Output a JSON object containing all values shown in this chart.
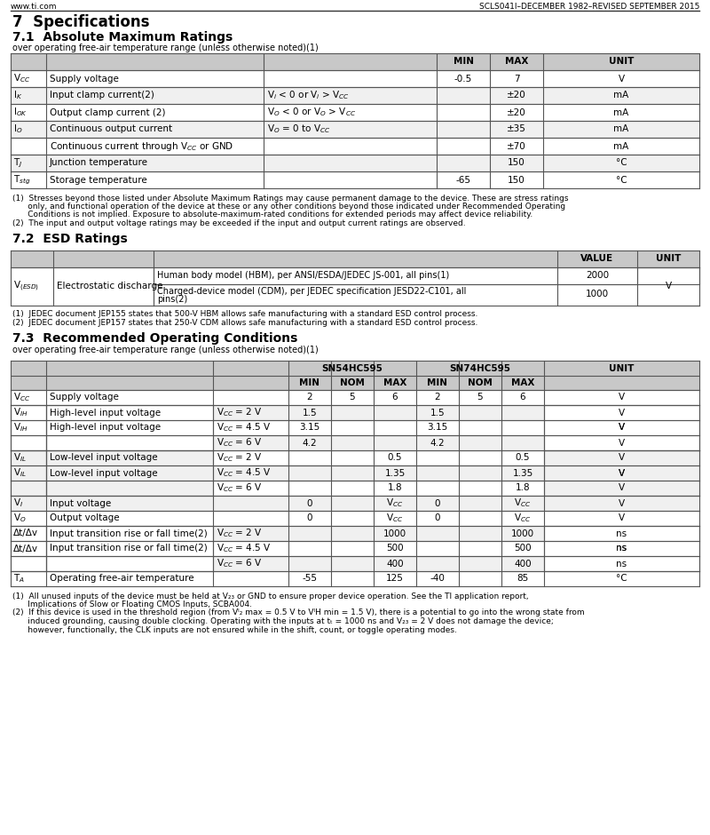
{
  "bg_color": "#ffffff",
  "header_left": "www.ti.com",
  "header_right": "SCLS041I–DECEMBER 1982–REVISED SEPTEMBER 2015",
  "section_title": "7  Specifications",
  "sec71_title": "7.1  Absolute Maximum Ratings",
  "sec71_subtitle": "over operating free-air temperature range (unless otherwise noted)(1)",
  "sec72_title": "7.2  ESD Ratings",
  "sec73_title": "7.3  Recommended Operating Conditions",
  "sec73_subtitle": "over operating free-air temperature range (unless otherwise noted)(1)",
  "gray_header": "#c8c8c8",
  "white_row": "#ffffff",
  "light_row": "#f0f0f0",
  "border_color": "#888888",
  "text_color": "#000000"
}
